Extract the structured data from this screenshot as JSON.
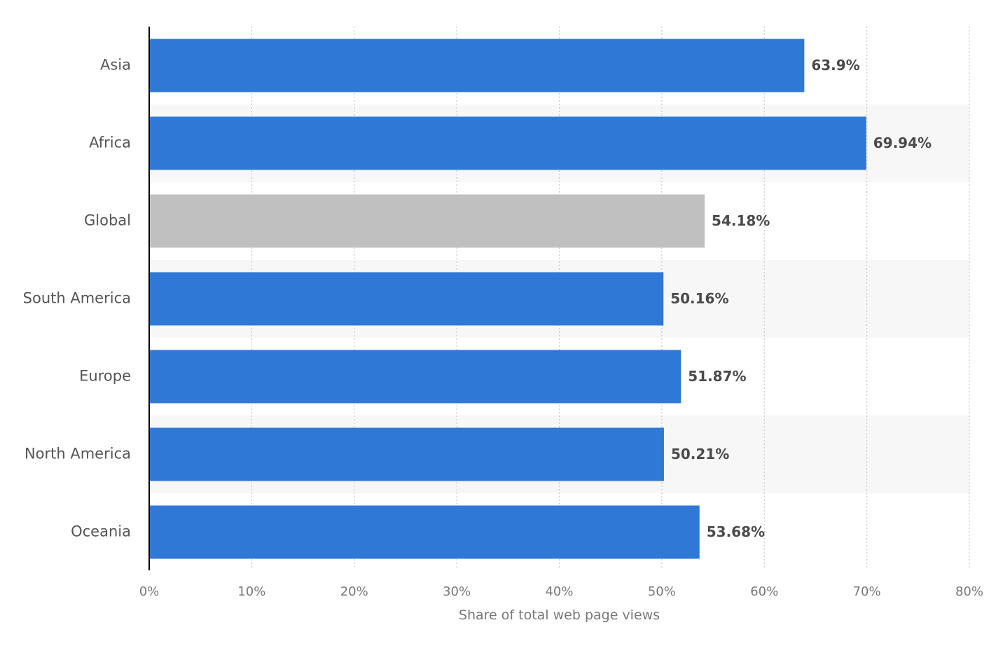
{
  "chart_data": {
    "type": "bar",
    "orientation": "horizontal",
    "title": "",
    "xlabel": "Share of total web page views",
    "ylabel": "",
    "xlim": [
      0,
      80
    ],
    "grid": true,
    "categories": [
      "Asia",
      "Africa",
      "Global",
      "South America",
      "Europe",
      "North America",
      "Oceania"
    ],
    "values": [
      63.9,
      69.94,
      54.18,
      50.16,
      51.87,
      50.21,
      53.68
    ],
    "value_labels": [
      "63.9%",
      "69.94%",
      "54.18%",
      "50.16%",
      "51.87%",
      "50.21%",
      "53.68%"
    ],
    "x_ticks": [
      0,
      10,
      20,
      30,
      40,
      50,
      60,
      70,
      80
    ],
    "x_tick_labels": [
      "0%",
      "10%",
      "20%",
      "30%",
      "40%",
      "50%",
      "60%",
      "70%",
      "80%"
    ],
    "highlighted_category": "Global",
    "colors": {
      "bar": "#2f78d6",
      "highlight_bar": "#c0c0c0",
      "alt_row_band": "#f7f7f7",
      "grid": "#c8c8c8",
      "axis": "#000000"
    }
  }
}
